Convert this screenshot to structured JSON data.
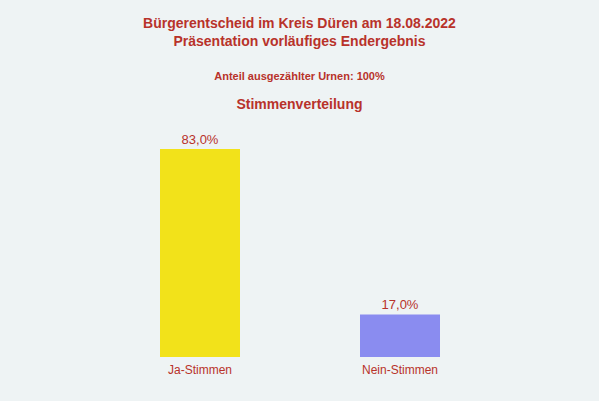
{
  "chart_data": {
    "type": "bar",
    "title": "Bürgerentscheid im Kreis Düren am 18.08.2022",
    "subtitle": "Präsentation vorläufiges Endergebnis",
    "annotations": [
      "Anteil ausgezählter Urnen: 100%",
      "Stimmenverteilung"
    ],
    "categories": [
      "Ja-Stimmen",
      "Nein-Stimmen"
    ],
    "values": [
      83.0,
      17.0
    ],
    "value_labels": [
      "83,0%",
      "17,0%"
    ],
    "colors": [
      "#f2e21a",
      "#8a8cf0"
    ],
    "data_labels": true,
    "tick_labels": "x",
    "grid": false
  }
}
